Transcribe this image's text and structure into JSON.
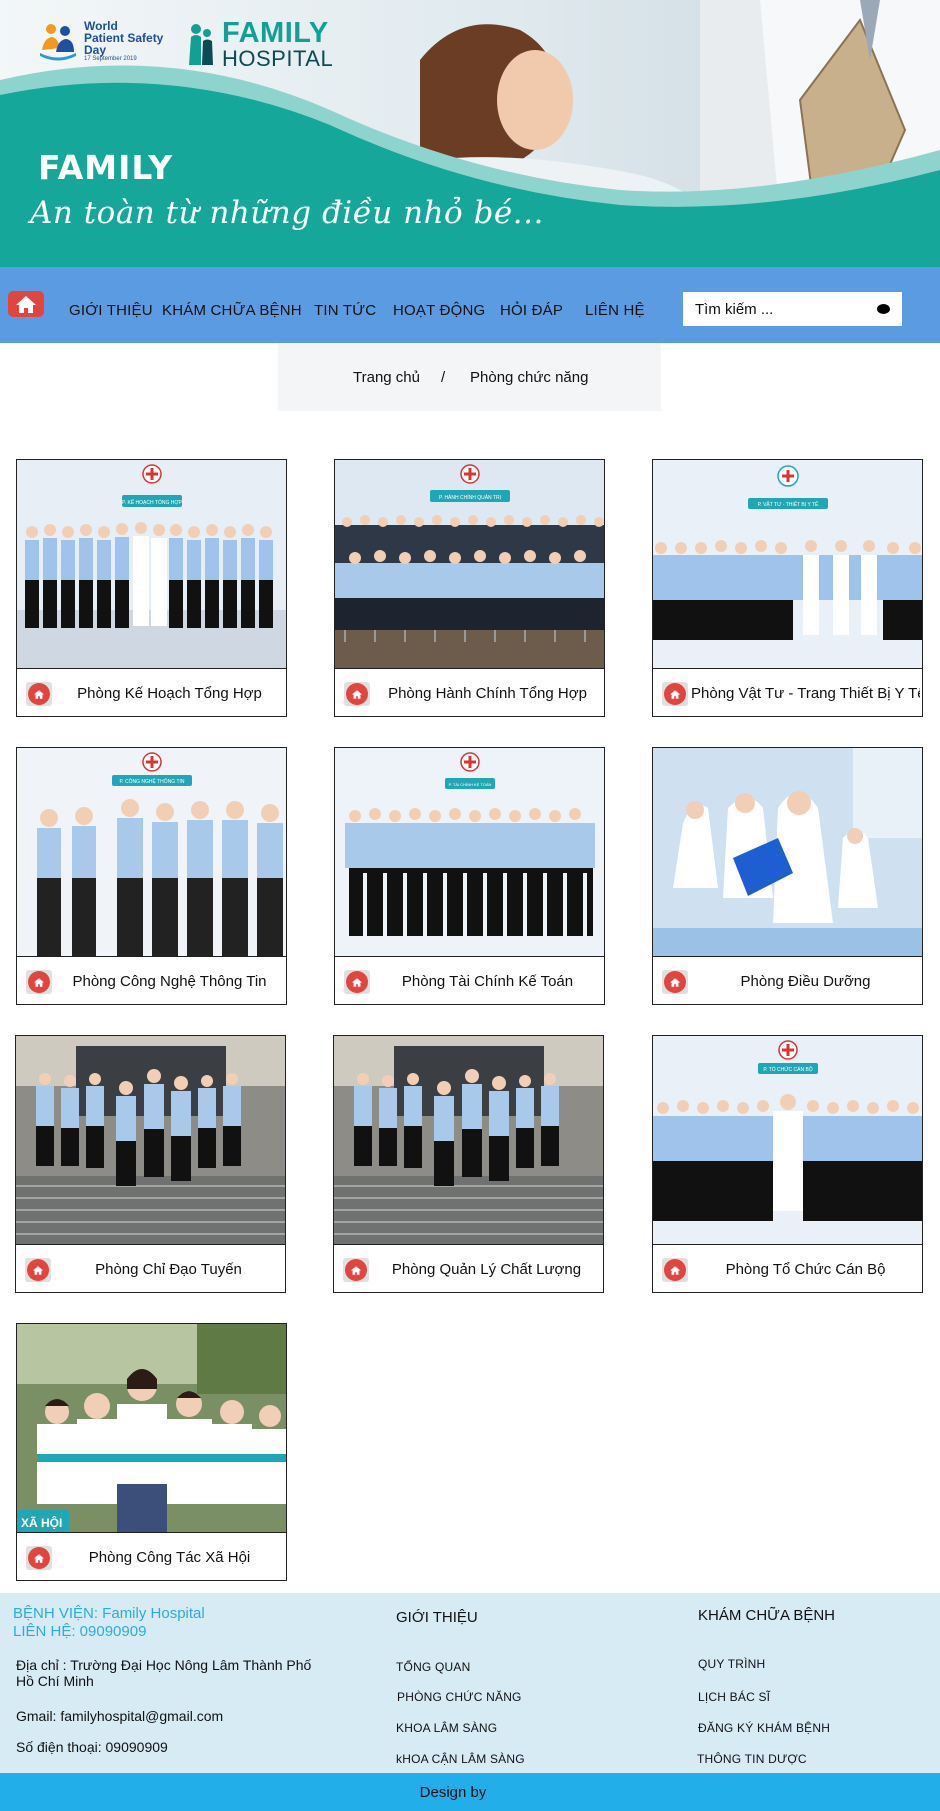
{
  "header": {
    "wpsd_line1": "World",
    "wpsd_line2": "Patient Safety",
    "wpsd_line3": "Day",
    "wpsd_date": "17 September 2019",
    "family_line1": "FAMILY",
    "family_line2": "HOSPITAL",
    "title": "FAMILY",
    "slogan": "An toàn từ những điều nhỏ bé..."
  },
  "nav": {
    "items": [
      "GIỚI THIỆU",
      "KHÁM CHỮA BỆNH",
      "TIN TỨC",
      "HOẠT ĐỘNG",
      "HỎI ĐÁP",
      "LIÊN HỆ"
    ],
    "search_placeholder": "Tìm kiếm ..."
  },
  "breadcrumb": {
    "home": "Trang chủ",
    "separator": "/",
    "current": "Phòng chức năng"
  },
  "departments": [
    {
      "name": "Phòng Kế Hoạch Tổng Hợp",
      "sign": "P. KẾ HOẠCH TỔNG HỢP"
    },
    {
      "name": "Phòng Hành Chính Tổng Hợp",
      "sign": "P. HÀNH CHÍNH QUẢN TRỊ"
    },
    {
      "name": "Phòng Vật Tư - Trang Thiết Bị Y Tế",
      "sign": "P. VẬT TƯ - THIẾT BỊ Y TẾ"
    },
    {
      "name": "Phòng Công Nghệ Thông Tin",
      "sign": "P. CÔNG NGHỆ THÔNG TIN"
    },
    {
      "name": "Phòng Tài Chính Kế Toán",
      "sign": "P. TÀI CHÍNH KẾ TOÁN"
    },
    {
      "name": "Phòng Điều Dưỡng",
      "sign": ""
    },
    {
      "name": "Phòng Chỉ Đạo Tuyến",
      "sign": ""
    },
    {
      "name": "Phòng Quản Lý Chất Lượng",
      "sign": ""
    },
    {
      "name": "Phòng Tổ Chức Cán Bộ",
      "sign": "P. TỔ CHỨC CÁN BỘ"
    },
    {
      "name": "Phòng Công Tác Xã Hội",
      "sign": "XÃ HỘI"
    }
  ],
  "footer": {
    "hospital": "BỆNH VIỆN: Family Hospital",
    "contact": "LIÊN HỆ: 09090909",
    "address": "Địa chỉ : Trường Đại Học Nông Lâm Thành Phố Hồ Chí Minh",
    "gmail": "Gmail: familyhospital@gmail.com",
    "phone": "Số điện thoại: 09090909",
    "col1_title": "GIỚI THIỆU",
    "col1_links": [
      "TỔNG QUAN",
      "PHÒNG CHỨC NĂNG",
      "KHOA LÂM SÀNG",
      "kHOA CẬN LÂM SÀNG"
    ],
    "col2_title": "KHÁM CHỮA BỆNH",
    "col2_links": [
      "QUY TRÌNH",
      "LỊCH BÁC SĨ",
      "ĐĂNG KÝ KHÁM BỆNH",
      "THÔNG TIN DƯỢC"
    ],
    "credit": "Design by"
  },
  "colors": {
    "nav_bg": "#5b9be2",
    "banner_teal": "#14a79a",
    "home_icon_red": "#e2453e",
    "footer_bg": "#d7ebf5",
    "bottom_bar": "#22aee8",
    "footer_accent": "#2eaadf"
  },
  "icons": [
    "home-icon",
    "search-icon",
    "red-cross-icon"
  ]
}
